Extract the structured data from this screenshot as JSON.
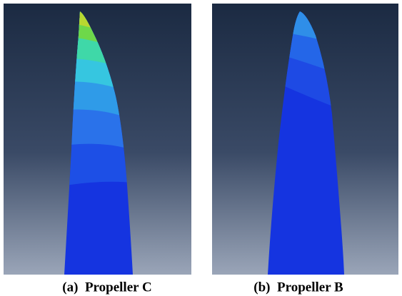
{
  "figure": {
    "panels": [
      {
        "caption": "(a)  Propeller C"
      },
      {
        "caption": "(b)  Propeller B"
      }
    ]
  }
}
